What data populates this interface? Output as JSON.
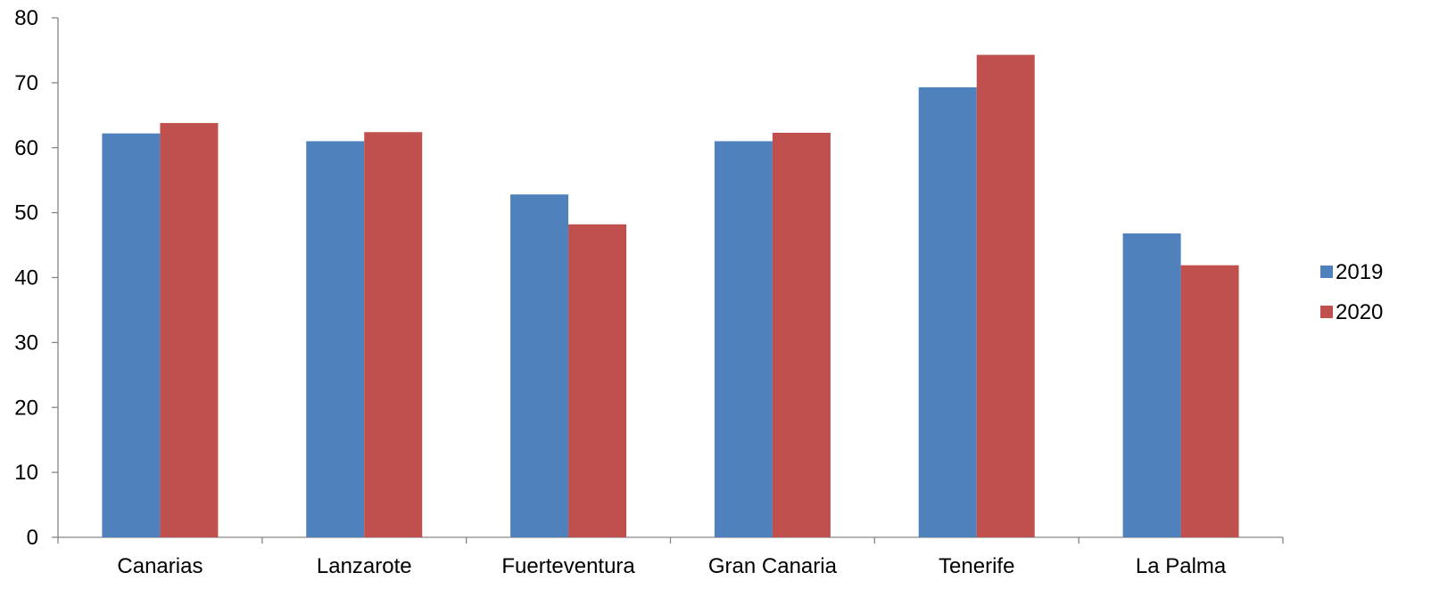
{
  "chart_data": {
    "type": "bar",
    "categories": [
      "Canarias",
      "Lanzarote",
      "Fuerteventura",
      "Gran Canaria",
      "Tenerife",
      "La Palma"
    ],
    "series": [
      {
        "name": "2019",
        "values": [
          62.2,
          61.0,
          52.8,
          61.0,
          69.3,
          46.8
        ],
        "color": "#4F81BD"
      },
      {
        "name": "2020",
        "values": [
          63.8,
          62.4,
          48.2,
          62.3,
          74.3,
          41.9
        ],
        "color": "#C0504D"
      }
    ],
    "yticks": [
      "0",
      "10",
      "20",
      "30",
      "40",
      "50",
      "60",
      "70",
      "80"
    ],
    "ylim": [
      0,
      80
    ],
    "grid": false,
    "legend_position": "right"
  }
}
